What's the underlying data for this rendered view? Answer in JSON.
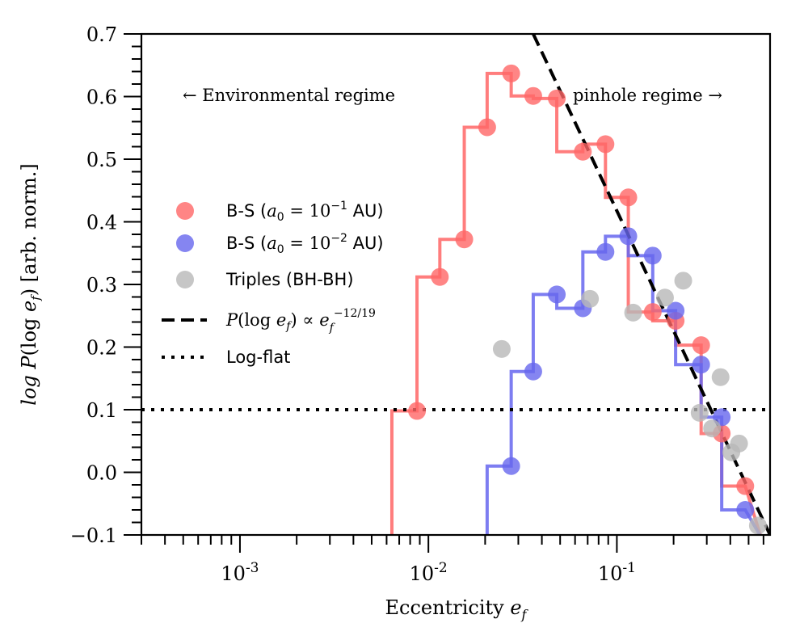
{
  "chart_data": {
    "type": "scatter",
    "title": "",
    "xlabel": "Eccentricity e_f",
    "ylabel": "log P(log e_f) [arb. norm.]",
    "xscale": "log",
    "xlim": [
      0.0003,
      0.65
    ],
    "ylim": [
      -0.1,
      0.7
    ],
    "x_tick_labels": [
      {
        "value": 0.001,
        "mantissa": "10",
        "exponent": "-3"
      },
      {
        "value": 0.01,
        "mantissa": "10",
        "exponent": "-2"
      },
      {
        "value": 0.1,
        "mantissa": "10",
        "exponent": "-1"
      }
    ],
    "y_ticks": [
      -0.1,
      0.0,
      0.1,
      0.2,
      0.3,
      0.4,
      0.5,
      0.6,
      0.7
    ],
    "y_tick_labels": [
      "−0.1",
      "0.0",
      "0.1",
      "0.2",
      "0.3",
      "0.4",
      "0.5",
      "0.6",
      "0.7"
    ],
    "annotations": {
      "left": "← Environmental regime",
      "right": "pinhole regime →"
    },
    "legend": {
      "placement": "center-left",
      "entries": [
        {
          "label": "B-S (a₀ = 10⁻¹ AU)",
          "marker": "circle",
          "color": "#ff6666"
        },
        {
          "label": "B-S (a₀ = 10⁻² AU)",
          "marker": "circle",
          "color": "#6666ee"
        },
        {
          "label": "Triples (BH-BH)",
          "marker": "circle",
          "color": "#b8b8b8"
        },
        {
          "label": "P(log e_f) ∝ e_f^(−12/19)",
          "marker": "dashed-line",
          "color": "#000000"
        },
        {
          "label": "Log-flat",
          "marker": "dotted-line",
          "color": "#000000"
        }
      ]
    },
    "series": [
      {
        "name": "B-S (a0 = 10^-1 AU)",
        "color": "#ff6666",
        "points": [
          {
            "x": 0.0087,
            "y": 0.098
          },
          {
            "x": 0.0115,
            "y": 0.312
          },
          {
            "x": 0.0155,
            "y": 0.372
          },
          {
            "x": 0.0205,
            "y": 0.551
          },
          {
            "x": 0.0275,
            "y": 0.637
          },
          {
            "x": 0.036,
            "y": 0.601
          },
          {
            "x": 0.048,
            "y": 0.597
          },
          {
            "x": 0.066,
            "y": 0.512
          },
          {
            "x": 0.087,
            "y": 0.524
          },
          {
            "x": 0.115,
            "y": 0.439
          },
          {
            "x": 0.155,
            "y": 0.256
          },
          {
            "x": 0.205,
            "y": 0.242
          },
          {
            "x": 0.28,
            "y": 0.203
          },
          {
            "x": 0.36,
            "y": 0.062
          },
          {
            "x": 0.48,
            "y": -0.022
          }
        ]
      },
      {
        "name": "B-S (a0 = 10^-2 AU)",
        "color": "#6666ee",
        "points": [
          {
            "x": 0.0275,
            "y": 0.01
          },
          {
            "x": 0.036,
            "y": 0.161
          },
          {
            "x": 0.048,
            "y": 0.284
          },
          {
            "x": 0.066,
            "y": 0.262
          },
          {
            "x": 0.087,
            "y": 0.352
          },
          {
            "x": 0.115,
            "y": 0.377
          },
          {
            "x": 0.155,
            "y": 0.346
          },
          {
            "x": 0.205,
            "y": 0.258
          },
          {
            "x": 0.28,
            "y": 0.172
          },
          {
            "x": 0.36,
            "y": 0.088
          },
          {
            "x": 0.48,
            "y": -0.06
          }
        ]
      },
      {
        "name": "Triples (BH-BH)",
        "color": "#b8b8b8",
        "points": [
          {
            "x": 0.0245,
            "y": 0.197
          },
          {
            "x": 0.072,
            "y": 0.277
          },
          {
            "x": 0.122,
            "y": 0.255
          },
          {
            "x": 0.18,
            "y": 0.279
          },
          {
            "x": 0.225,
            "y": 0.306
          },
          {
            "x": 0.275,
            "y": 0.095
          },
          {
            "x": 0.32,
            "y": 0.07
          },
          {
            "x": 0.355,
            "y": 0.152
          },
          {
            "x": 0.405,
            "y": 0.032
          },
          {
            "x": 0.445,
            "y": 0.046
          },
          {
            "x": 0.56,
            "y": -0.085
          }
        ]
      }
    ],
    "histograms": [
      {
        "name": "B-S (a0 = 10^-1 AU) step",
        "color": "#ff6666",
        "edges": [
          0.0064,
          0.0087,
          0.0115,
          0.0155,
          0.0205,
          0.0275,
          0.036,
          0.048,
          0.066,
          0.087,
          0.115,
          0.155,
          0.205,
          0.28,
          0.36,
          0.48
        ],
        "values": [
          0.098,
          0.312,
          0.372,
          0.551,
          0.637,
          0.601,
          0.597,
          0.512,
          0.524,
          0.439,
          0.256,
          0.242,
          0.203,
          0.062,
          -0.022
        ],
        "end": 0.58
      },
      {
        "name": "B-S (a0 = 10^-2 AU) step",
        "color": "#6666ee",
        "edges": [
          0.0205,
          0.0275,
          0.036,
          0.048,
          0.066,
          0.087,
          0.115,
          0.155,
          0.205,
          0.28,
          0.36,
          0.48
        ],
        "values": [
          0.01,
          0.161,
          0.284,
          0.262,
          0.352,
          0.377,
          0.346,
          0.258,
          0.172,
          0.088,
          -0.06
        ],
        "end": 0.58
      }
    ],
    "reference_lines": [
      {
        "name": "power law",
        "style": "dashed",
        "color": "#000000",
        "x": [
          0.036,
          0.65
        ],
        "y": [
          0.7,
          -0.1
        ]
      },
      {
        "name": "log-flat",
        "style": "dotted",
        "color": "#000000",
        "y": 0.1
      }
    ]
  }
}
